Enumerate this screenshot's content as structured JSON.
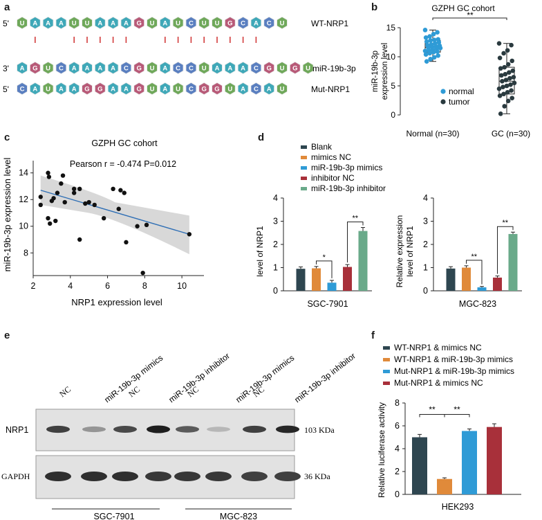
{
  "panel_letters": {
    "a": "a",
    "b": "b",
    "c": "c",
    "d": "d",
    "e": "e",
    "f": "f"
  },
  "panel_a": {
    "rows": [
      {
        "prime": "5'",
        "label": "WT-NRP1",
        "seq": [
          "U",
          "A",
          "A",
          "A",
          "U",
          "U",
          "A",
          "A",
          "A",
          "G",
          "U",
          "A",
          "U",
          "C",
          "U",
          "U",
          "G",
          "C",
          "A",
          "C",
          "U"
        ]
      },
      {
        "prime": "3'",
        "label": "miR-19b-3p",
        "seq": [
          "A",
          "G",
          "U",
          "C",
          "A",
          "A",
          "A",
          "A",
          "C",
          "G",
          "U",
          "A",
          "C",
          "C",
          "U",
          "A",
          "A",
          "A",
          "C",
          "G",
          "U",
          "G",
          "U"
        ]
      },
      {
        "prime": "5'",
        "label": "Mut-NRP1",
        "seq": [
          "C",
          "A",
          "U",
          "A",
          "A",
          "G",
          "G",
          "A",
          "A",
          "G",
          "U",
          "A",
          "U",
          "C",
          "G",
          "G",
          "U",
          "A",
          "C",
          "A",
          "U"
        ]
      }
    ],
    "pair_positions": [
      1,
      4,
      5,
      6,
      7,
      8,
      11,
      12,
      13,
      14,
      15,
      16,
      17,
      18
    ],
    "nucleotide_colors": {
      "A": "#3fa8b8",
      "U": "#6fa85a",
      "G": "#b85a78",
      "C": "#5a7fc0"
    }
  },
  "panel_b": {
    "chart_data": {
      "type": "box+scatter",
      "title": "GZPH GC cohort",
      "ylabel": "miR-19b-3p expression level",
      "ylim": [
        0,
        15
      ],
      "yticks": [
        0,
        5,
        10,
        15
      ],
      "categories": [
        "Normal (n=30)",
        "GC (n=30)"
      ],
      "significance": "**",
      "legend": [
        "normal",
        "tumor"
      ],
      "series": [
        {
          "name": "normal",
          "color": "#2f9bd6",
          "box": {
            "q1": 10.8,
            "median": 11.6,
            "q3": 12.8,
            "min": 9.2,
            "max": 14.6
          },
          "values": [
            14.6,
            14.2,
            13.9,
            13.5,
            13.3,
            13.0,
            12.9,
            12.8,
            12.6,
            12.5,
            12.3,
            12.1,
            12.0,
            11.9,
            11.8,
            11.7,
            11.6,
            11.5,
            11.4,
            11.2,
            11.1,
            11.0,
            10.9,
            10.8,
            10.6,
            10.4,
            10.2,
            9.9,
            9.6,
            9.2
          ]
        },
        {
          "name": "tumor",
          "color": "#2a3a3f",
          "box": {
            "q1": 3.6,
            "median": 5.8,
            "q3": 8.2,
            "min": 0.2,
            "max": 12.3
          },
          "values": [
            12.3,
            12.0,
            11.1,
            10.6,
            9.8,
            9.3,
            8.7,
            8.2,
            8.0,
            7.6,
            7.3,
            7.0,
            6.8,
            6.5,
            6.3,
            6.0,
            5.8,
            5.5,
            5.2,
            5.0,
            4.8,
            4.5,
            4.2,
            3.9,
            3.6,
            3.3,
            2.9,
            2.4,
            1.5,
            0.2
          ]
        }
      ]
    }
  },
  "panel_c": {
    "chart_data": {
      "type": "scatter",
      "title": "GZPH GC cohort",
      "stats": "Pearson r = -0.474    P=0.012",
      "xlabel": "NRP1 expression level",
      "ylabel": "miR-19b-3p expression level",
      "xlim": [
        2,
        11
      ],
      "ylim": [
        6.3,
        14.4
      ],
      "xticks": [
        2,
        4,
        6,
        8,
        10
      ],
      "yticks": [
        8,
        10,
        12,
        14
      ],
      "x": [
        2.4,
        2.4,
        2.8,
        2.85,
        2.8,
        2.9,
        3.0,
        3.1,
        3.2,
        3.3,
        3.5,
        3.6,
        3.7,
        4.2,
        4.2,
        4.5,
        4.5,
        4.8,
        5.0,
        5.3,
        5.8,
        6.3,
        6.6,
        6.7,
        6.9,
        7.0,
        7.6,
        7.9,
        8.1,
        10.4
      ],
      "y": [
        12.2,
        11.6,
        14.0,
        13.7,
        10.6,
        10.2,
        11.9,
        12.1,
        10.4,
        12.5,
        13.2,
        13.8,
        11.8,
        12.8,
        12.5,
        12.8,
        9.0,
        11.7,
        11.8,
        11.6,
        10.6,
        12.8,
        11.3,
        12.7,
        12.5,
        8.8,
        10.0,
        6.5,
        10.1,
        9.4
      ],
      "fit": {
        "x": [
          2.4,
          10.4
        ],
        "y": [
          12.7,
          9.4
        ]
      }
    }
  },
  "panel_d": {
    "legend": [
      "Blank",
      "mimics NC",
      "miR-19b-3p mimics",
      "inhibitor NC",
      "miR-19b-3p inhibitor"
    ],
    "colors": [
      "#2e4650",
      "#e08a3a",
      "#2f9bd6",
      "#a8303a",
      "#6aaa8a"
    ],
    "ylabel_line1": "Relative expression",
    "ylabel_line2": "level of NRP1",
    "charts": [
      {
        "chart_data": {
          "type": "bar",
          "title": "SGC-7901",
          "ylim": [
            0,
            4
          ],
          "yticks": [
            0,
            1,
            2,
            3,
            4
          ],
          "categories": [
            "Blank",
            "mimics NC",
            "miR-19b-3p mimics",
            "inhibitor NC",
            "miR-19b-3p inhibitor"
          ],
          "values": [
            0.95,
            0.97,
            0.35,
            1.03,
            2.58
          ],
          "errors": [
            0.08,
            0.08,
            0.1,
            0.1,
            0.15
          ],
          "sig": [
            {
              "from": 1,
              "to": 2,
              "label": "*"
            },
            {
              "from": 3,
              "to": 4,
              "label": "**"
            }
          ]
        }
      },
      {
        "chart_data": {
          "type": "bar",
          "title": "MGC-823",
          "ylim": [
            0,
            4
          ],
          "yticks": [
            0,
            1,
            2,
            3,
            4
          ],
          "categories": [
            "Blank",
            "mimics NC",
            "miR-19b-3p mimics",
            "inhibitor NC",
            "miR-19b-3p inhibitor"
          ],
          "values": [
            0.96,
            1.0,
            0.15,
            0.57,
            2.45
          ],
          "errors": [
            0.08,
            0.08,
            0.04,
            0.07,
            0.08
          ],
          "sig": [
            {
              "from": 1,
              "to": 2,
              "label": "**"
            },
            {
              "from": 3,
              "to": 4,
              "label": "**"
            }
          ]
        }
      }
    ]
  },
  "panel_e": {
    "lane_labels": [
      "NC",
      "miR-19b-3p mimics",
      "NC",
      "miR-19b-3p inhibitor",
      "NC",
      "miR-19b-3p mimics",
      "NC",
      "miR-19b-3p inhibitor"
    ],
    "row_labels": [
      "NRP1",
      "GAPDH"
    ],
    "sizes": [
      "103 KDa",
      "36 KDa"
    ],
    "groups": [
      "SGC-7901",
      "MGC-823"
    ],
    "nrp1_intensity": [
      0.8,
      0.3,
      0.75,
      1.0,
      0.65,
      0.1,
      0.8,
      0.95
    ],
    "gapdh_intensity": [
      0.9,
      0.9,
      0.9,
      0.85,
      0.85,
      0.85,
      0.8,
      0.8
    ]
  },
  "panel_f": {
    "chart_data": {
      "type": "bar",
      "legend": [
        "WT-NRP1 & mimics NC",
        "WT-NRP1 & miR-19b-3p mimics",
        "Mut-NRP1 & miR-19b-3p mimics",
        "Mut-NRP1 & mimics NC"
      ],
      "colors": [
        "#2e4650",
        "#e08a3a",
        "#2f9bd6",
        "#a8303a"
      ],
      "ylabel": "Relative luciferase activity",
      "xlabel": "HEK293",
      "ylim": [
        0,
        8
      ],
      "yticks": [
        0,
        2,
        4,
        6,
        8
      ],
      "values": [
        5.0,
        1.35,
        5.55,
        5.9
      ],
      "errors": [
        0.25,
        0.1,
        0.18,
        0.28
      ],
      "sig": [
        {
          "from": 0,
          "to": 1,
          "label": "**"
        },
        {
          "from": 1,
          "to": 2,
          "label": "**"
        }
      ]
    }
  }
}
